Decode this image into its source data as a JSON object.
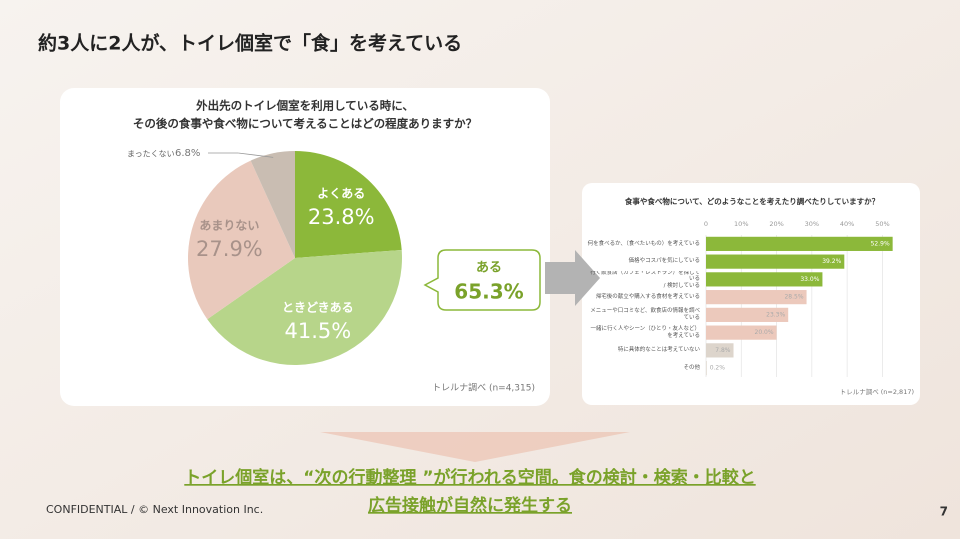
{
  "slide": {
    "title": "約3人に2人が、トイレ個室で「食」を考えている",
    "conclusion": [
      "トイレ個室は、“次の行動整理 ”が行われる空間。食の検討・検索・比較と",
      "広告接触が自然に発生する"
    ],
    "footer": "CONFIDENTIAL / © Next Innovation Inc.",
    "page": "7"
  },
  "chart_data": [
    {
      "type": "pie",
      "title": [
        "外出先のトイレ個室を利用している時に、",
        "その後の食事や食べ物について考えることはどの程度ありますか？"
      ],
      "categories": [
        "よくある",
        "ときどきある",
        "あまりない",
        "まったくない"
      ],
      "values": [
        23.8,
        41.5,
        27.9,
        6.8
      ],
      "value_labels": [
        "23.8%",
        "41.5%",
        "27.9%",
        "6.8%"
      ],
      "colors": [
        "#8cb83a",
        "#b7d58a",
        "#e9c9bc",
        "#c9bdb2"
      ],
      "annotation": {
        "label": "ある",
        "value_label": "65.3%"
      },
      "source": "トレルナ調べ (n=4,315)"
    },
    {
      "type": "hbar",
      "title": "食事や食べ物について、どのようなことを考えたり調べたりしていますか？",
      "categories": [
        "何を食べるか、（食べたいもの）を考えている",
        "価格やコスパを気にしている",
        "行く飲食店（カフェ・レストラン）を探している\n/ 検討している",
        "帰宅後の献立や購入する食材を考えている",
        "メニューや口コミなど、飲食店の情報を調べている",
        "一緒に行く人やシーン（ひとり・友人など）\nを考えている",
        "特に具体的なことは考えていない",
        "その他"
      ],
      "values": [
        52.9,
        39.2,
        33.0,
        28.5,
        23.3,
        20.0,
        7.8,
        0.2
      ],
      "value_labels": [
        "52.9%",
        "39.2%",
        "33.0%",
        "28.5%",
        "23.3%",
        "20.0%",
        "7.8%",
        "0.2%"
      ],
      "colors": [
        "#8cb83a",
        "#8cb83a",
        "#8cb83a",
        "#ecc9bc",
        "#ecc9bc",
        "#ecc9bc",
        "#ddd5cc",
        "#ddd5cc"
      ],
      "xlim": [
        0,
        53
      ],
      "xticks": [
        0,
        {
          "value": 10,
          "label": "10%"
        },
        {
          "value": 20,
          "label": "20%"
        },
        {
          "value": 30,
          "label": "30%"
        },
        {
          "value": 40,
          "label": "40%"
        },
        {
          "value": 50,
          "label": "50%"
        }
      ],
      "grid": true,
      "source": "トレルナ調べ (n=2,817)"
    }
  ]
}
